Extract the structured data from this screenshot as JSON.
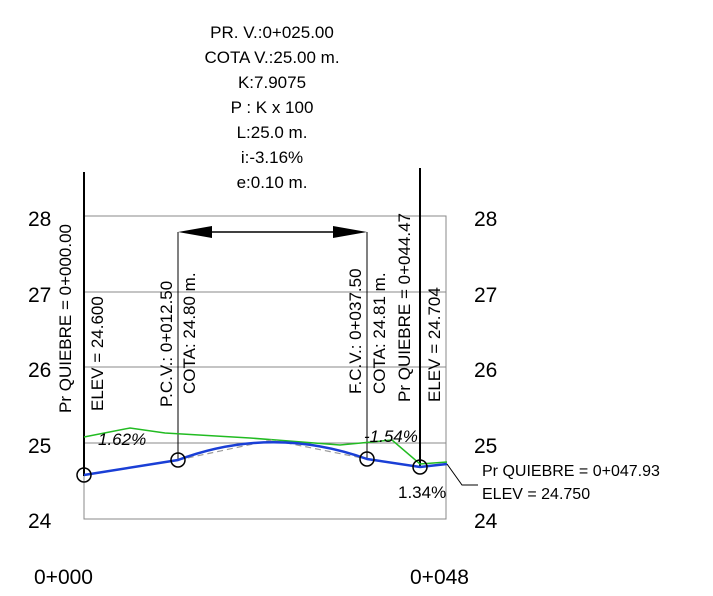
{
  "curve_info": {
    "pr_v": "PR. V.:0+025.00",
    "cota_v": "COTA V.:25.00 m.",
    "k": "K:7.9075",
    "p": "P : K x 100",
    "l": "L:25.0 m.",
    "i": "i:-3.16%",
    "e": "e:0.10 m."
  },
  "y_labels_left": [
    "28",
    "27",
    "26",
    "25",
    "24"
  ],
  "y_labels_right": [
    "28",
    "27",
    "26",
    "25",
    "24"
  ],
  "x_labels": [
    "0+000",
    "0+048"
  ],
  "vertical_labels": {
    "pq_start": "Pr QUIEBRE = 0+000.00",
    "elev_start": "ELEV = 24.600",
    "pcv": "P.C.V.: 0+012.50",
    "pcv_cota": "COTA: 24.80 m.",
    "fcv": "F.C.V.: 0+037.50",
    "fcv_cota": "COTA: 24.81 m.",
    "pq_mid": "Pr QUIEBRE = 0+044.47",
    "elev_mid": "ELEV = 24.704"
  },
  "end_point": {
    "pq": "Pr QUIEBRE = 0+047.93",
    "elev": "ELEV = 24.750"
  },
  "slopes": [
    "1.62%",
    "-1.54%",
    "1.34%"
  ],
  "colors": {
    "grid": "#888888",
    "design_line": "#1a3fd6",
    "terrain_line": "#22bb22",
    "tangent_dashed": "#999999",
    "text": "#000000"
  }
}
